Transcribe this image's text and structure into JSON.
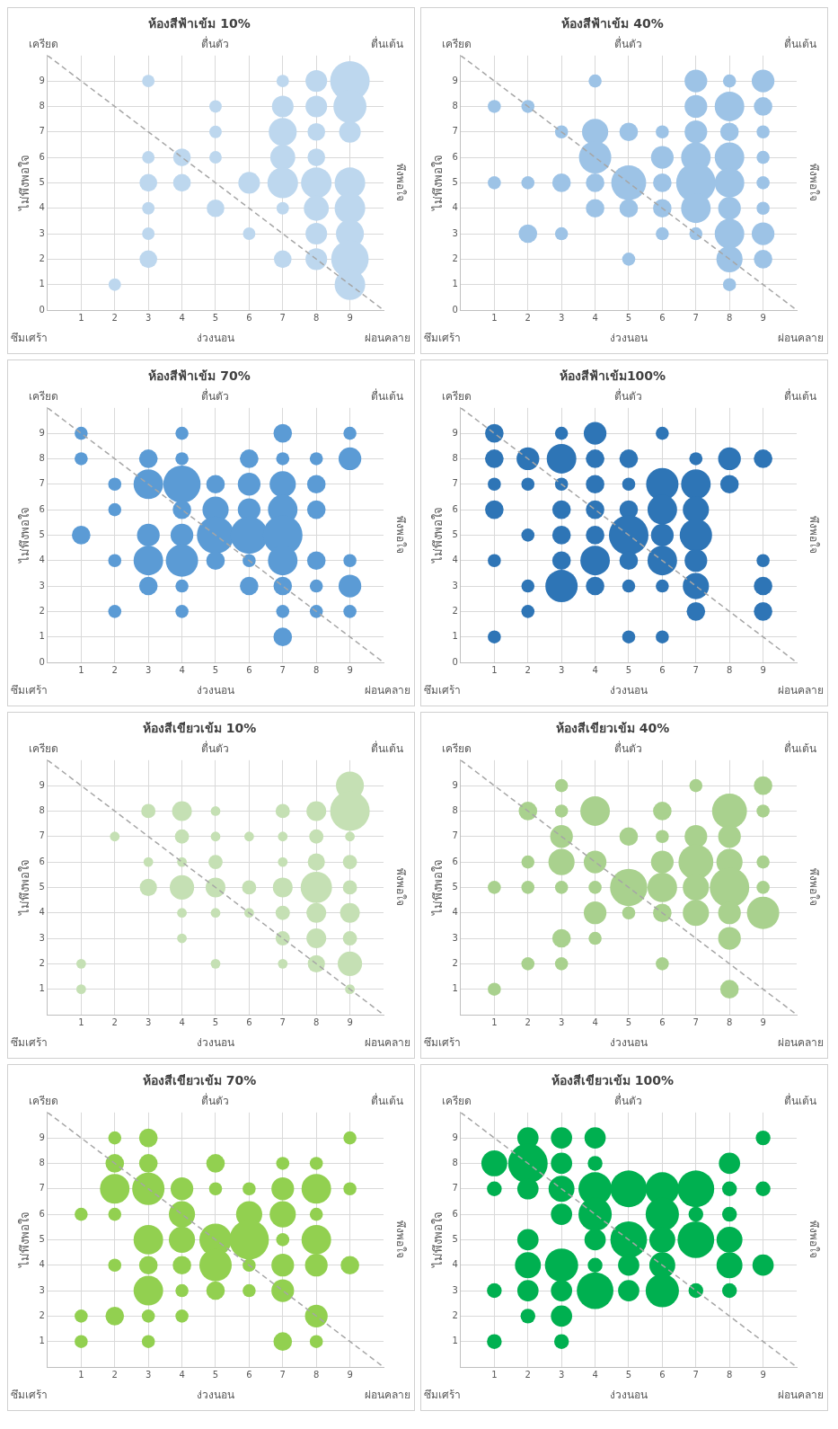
{
  "chart_data": [
    {
      "type": "bubble",
      "title": "ห้องสีฟ้าเข้ม 10%",
      "xlabel": "ง่วงนอน",
      "ylabel": "ไม่พึงพอใจ",
      "y2label": "พึงพอใจ",
      "x2label": "ตื่นตัว",
      "annotations": [
        "เครียด",
        "ตื่นเต้น",
        "ซึมเศร้า",
        "ผ่อนคลาย"
      ],
      "xlim": [
        0,
        10
      ],
      "xticks": [
        1,
        2,
        3,
        4,
        5,
        6,
        7,
        8,
        9
      ],
      "ylim": [
        0,
        10
      ],
      "yticks": [
        0,
        1,
        2,
        3,
        4,
        5,
        6,
        7,
        8,
        9
      ],
      "grid": true,
      "series": [
        {
          "color": "#bdd7ee",
          "x": [
            2,
            3,
            3,
            3,
            3,
            3,
            3,
            4,
            4,
            5,
            5,
            5,
            5,
            6,
            6,
            7,
            7,
            7,
            7,
            7,
            7,
            7,
            8,
            8,
            8,
            8,
            8,
            8,
            8,
            8,
            9,
            9,
            9,
            9,
            9,
            9,
            9,
            9
          ],
          "values": [
            1,
            9,
            6,
            5,
            4,
            3,
            2,
            6,
            5,
            8,
            7,
            6,
            4,
            5,
            3,
            9,
            8,
            7,
            6,
            5,
            4,
            2,
            9,
            8,
            7,
            6,
            5,
            4,
            3,
            2,
            9,
            8,
            7,
            5,
            4,
            3,
            2,
            1
          ],
          "sizes": [
            0.1,
            0.1,
            0.1,
            0.2,
            0.1,
            0.1,
            0.2,
            0.2,
            0.2,
            0.1,
            0.1,
            0.1,
            0.2,
            0.3,
            0.1,
            0.1,
            0.3,
            0.5,
            0.4,
            0.6,
            0.1,
            0.2,
            0.3,
            0.3,
            0.2,
            0.2,
            0.6,
            0.4,
            0.3,
            0.3,
            1,
            0.7,
            0.3,
            0.6,
            0.6,
            0.5,
            0.9,
            0.6
          ]
        },
        {
          "type": "line",
          "color": "#a6a6a6",
          "line_style": "dashed",
          "x": [
            0,
            10
          ],
          "values": [
            10,
            0
          ]
        }
      ]
    },
    {
      "type": "bubble",
      "title": "ห้องสีฟ้าเข้ม 40%",
      "xlabel": "ง่วงนอน",
      "ylabel": "ไม่พึงพอใจ",
      "y2label": "พึงพอใจ",
      "x2label": "ตื่นตัว",
      "annotations": [
        "เครียด",
        "ตื่นเต้น",
        "ซึมเศร้า",
        "ผ่อนคลาย"
      ],
      "xlim": [
        0,
        10
      ],
      "xticks": [
        1,
        2,
        3,
        4,
        5,
        6,
        7,
        8,
        9
      ],
      "ylim": [
        0,
        10
      ],
      "yticks": [
        0,
        1,
        2,
        3,
        4,
        5,
        6,
        7,
        8,
        9
      ],
      "grid": true,
      "series": [
        {
          "color": "#9dc3e6",
          "x": [
            1,
            1,
            2,
            2,
            2,
            3,
            3,
            3,
            4,
            4,
            4,
            4,
            4,
            5,
            5,
            5,
            5,
            6,
            6,
            6,
            6,
            6,
            7,
            7,
            7,
            7,
            7,
            7,
            7,
            8,
            8,
            8,
            8,
            8,
            8,
            8,
            8,
            8,
            9,
            9,
            9,
            9,
            9,
            9,
            9,
            9
          ],
          "values": [
            8,
            5,
            8,
            5,
            3,
            7,
            5,
            3,
            9,
            7,
            6,
            5,
            4,
            7,
            5,
            4,
            2,
            7,
            6,
            5,
            4,
            3,
            9,
            8,
            7,
            6,
            5,
            4,
            3,
            9,
            8,
            7,
            6,
            5,
            4,
            3,
            2,
            1,
            9,
            8,
            7,
            6,
            5,
            4,
            3,
            2
          ],
          "sizes": [
            0.11,
            0.11,
            0.11,
            0.11,
            0.22,
            0.11,
            0.22,
            0.11,
            0.11,
            0.44,
            0.67,
            0.22,
            0.22,
            0.22,
            0.78,
            0.22,
            0.11,
            0.11,
            0.33,
            0.22,
            0.22,
            0.11,
            0.33,
            0.33,
            0.33,
            0.56,
            1,
            0.56,
            0.11,
            0.11,
            0.56,
            0.22,
            0.56,
            0.56,
            0.33,
            0.56,
            0.44,
            0.11,
            0.33,
            0.22,
            0.11,
            0.11,
            0.11,
            0.11,
            0.33,
            0.22
          ]
        },
        {
          "type": "line",
          "color": "#a6a6a6",
          "line_style": "dashed",
          "x": [
            0,
            10
          ],
          "values": [
            10,
            0
          ]
        }
      ]
    },
    {
      "type": "bubble",
      "title": "ห้องสีฟ้าเข้ม 70%",
      "xlabel": "ง่วงนอน",
      "ylabel": "ไม่พึงพอใจ",
      "y2label": "พึงพอใจ",
      "x2label": "ตื่นตัว",
      "annotations": [
        "เครียด",
        "ตื่นเต้น",
        "ซึมเศร้า",
        "ผ่อนคลาย"
      ],
      "xlim": [
        0,
        10
      ],
      "xticks": [
        1,
        2,
        3,
        4,
        5,
        6,
        7,
        8,
        9
      ],
      "ylim": [
        0,
        10
      ],
      "yticks": [
        0,
        1,
        2,
        3,
        4,
        5,
        6,
        7,
        8,
        9
      ],
      "grid": true,
      "series": [
        {
          "color": "#5b9bd5",
          "x": [
            1,
            1,
            1,
            2,
            2,
            2,
            2,
            3,
            3,
            3,
            3,
            3,
            4,
            4,
            4,
            4,
            4,
            4,
            4,
            4,
            5,
            5,
            5,
            5,
            6,
            6,
            6,
            6,
            6,
            6,
            7,
            7,
            7,
            7,
            7,
            7,
            7,
            7,
            7,
            8,
            8,
            8,
            8,
            8,
            8,
            9,
            9,
            9,
            9,
            9
          ],
          "values": [
            9,
            8,
            5,
            7,
            6,
            4,
            2,
            8,
            7,
            5,
            4,
            3,
            9,
            8,
            7,
            6,
            5,
            4,
            3,
            2,
            7,
            6,
            5,
            4,
            8,
            7,
            6,
            5,
            4,
            3,
            9,
            8,
            7,
            6,
            5,
            4,
            3,
            2,
            1,
            8,
            7,
            6,
            4,
            3,
            2,
            9,
            8,
            4,
            3,
            2
          ],
          "sizes": [
            0.11,
            0.11,
            0.22,
            0.11,
            0.11,
            0.11,
            0.11,
            0.22,
            0.56,
            0.33,
            0.56,
            0.22,
            0.11,
            0.11,
            0.89,
            0.22,
            0.33,
            0.67,
            0.11,
            0.11,
            0.22,
            0.44,
            0.89,
            0.22,
            0.22,
            0.33,
            0.33,
            0.89,
            0.11,
            0.22,
            0.22,
            0.11,
            0.44,
            0.56,
            1,
            0.56,
            0.22,
            0.11,
            0.22,
            0.11,
            0.22,
            0.22,
            0.22,
            0.11,
            0.11,
            0.11,
            0.33,
            0.11,
            0.33,
            0.11
          ]
        },
        {
          "type": "line",
          "color": "#a6a6a6",
          "line_style": "dashed",
          "x": [
            0,
            10
          ],
          "values": [
            10,
            0
          ]
        }
      ]
    },
    {
      "type": "bubble",
      "title": "ห้องสีฟ้าเข้ม100%",
      "xlabel": "ง่วงนอน",
      "ylabel": "ไม่พึงพอใจ",
      "y2label": "พึงพอใจ",
      "x2label": "ตื่นตัว",
      "annotations": [
        "เครียด",
        "ตื่นเต้น",
        "ซึมเศร้า",
        "ผ่อนคลาย"
      ],
      "xlim": [
        0,
        10
      ],
      "xticks": [
        1,
        2,
        3,
        4,
        5,
        6,
        7,
        8,
        9
      ],
      "ylim": [
        0,
        10
      ],
      "yticks": [
        0,
        1,
        2,
        3,
        4,
        5,
        6,
        7,
        8,
        9
      ],
      "grid": true,
      "series": [
        {
          "color": "#2e75b6",
          "x": [
            1,
            1,
            1,
            1,
            1,
            1,
            2,
            2,
            2,
            2,
            2,
            3,
            3,
            3,
            3,
            3,
            3,
            3,
            4,
            4,
            4,
            4,
            4,
            4,
            4,
            5,
            5,
            5,
            5,
            5,
            5,
            5,
            6,
            6,
            6,
            6,
            6,
            6,
            6,
            7,
            7,
            7,
            7,
            7,
            7,
            7,
            8,
            8,
            9,
            9,
            9,
            9
          ],
          "values": [
            9,
            8,
            7,
            6,
            4,
            1,
            8,
            7,
            5,
            3,
            2,
            9,
            8,
            7,
            6,
            5,
            4,
            3,
            9,
            8,
            7,
            6,
            5,
            4,
            3,
            8,
            7,
            6,
            5,
            4,
            3,
            1,
            9,
            7,
            6,
            5,
            4,
            3,
            1,
            8,
            7,
            6,
            5,
            4,
            3,
            2,
            8,
            7,
            8,
            4,
            3,
            2
          ],
          "sizes": [
            0.22,
            0.22,
            0.11,
            0.22,
            0.11,
            0.11,
            0.33,
            0.11,
            0.11,
            0.11,
            0.11,
            0.11,
            0.56,
            0.11,
            0.22,
            0.22,
            0.22,
            0.67,
            0.33,
            0.22,
            0.22,
            0.22,
            0.22,
            0.56,
            0.22,
            0.22,
            0.11,
            0.22,
            1,
            0.22,
            0.11,
            0.11,
            0.11,
            0.67,
            0.56,
            0.33,
            0.56,
            0.11,
            0.11,
            0.11,
            0.56,
            0.44,
            0.67,
            0.33,
            0.44,
            0.22,
            0.33,
            0.22,
            0.22,
            0.11,
            0.22,
            0.22
          ]
        },
        {
          "type": "line",
          "color": "#a6a6a6",
          "line_style": "dashed",
          "x": [
            0,
            10
          ],
          "values": [
            10,
            0
          ]
        }
      ]
    },
    {
      "type": "bubble",
      "title": "ห้องสีเขียวเข้ม 10%",
      "xlabel": "ง่วงนอน",
      "ylabel": "ไม่พึงพอใจ",
      "y2label": "พึงพอใจ",
      "x2label": "ตื่นตัว",
      "annotations": [
        "เครียด",
        "ตื่นเต้น",
        "ซึมเศร้า",
        "ผ่อนคลาย"
      ],
      "xlim": [
        0,
        10
      ],
      "xticks": [
        1,
        2,
        3,
        4,
        5,
        6,
        7,
        8,
        9
      ],
      "ylim": [
        0,
        10
      ],
      "yticks": [
        1,
        2,
        3,
        4,
        5,
        6,
        7,
        8,
        9
      ],
      "grid": true,
      "series": [
        {
          "color": "#c5e0b4",
          "x": [
            1,
            1,
            2,
            3,
            3,
            3,
            4,
            4,
            4,
            4,
            4,
            4,
            5,
            5,
            5,
            5,
            5,
            5,
            6,
            6,
            6,
            7,
            7,
            7,
            7,
            7,
            7,
            7,
            8,
            8,
            8,
            8,
            8,
            8,
            8,
            9,
            9,
            9,
            9,
            9,
            9,
            9,
            9,
            9
          ],
          "values": [
            2,
            1,
            7,
            8,
            6,
            5,
            8,
            7,
            6,
            5,
            4,
            3,
            8,
            7,
            6,
            5,
            4,
            2,
            7,
            5,
            4,
            8,
            7,
            6,
            5,
            4,
            3,
            2,
            8,
            7,
            6,
            5,
            4,
            3,
            2,
            9,
            8,
            7,
            6,
            5,
            4,
            3,
            2,
            1
          ],
          "sizes": [
            0.06,
            0.06,
            0.06,
            0.13,
            0.06,
            0.19,
            0.25,
            0.13,
            0.06,
            0.38,
            0.06,
            0.06,
            0.06,
            0.06,
            0.13,
            0.25,
            0.06,
            0.06,
            0.06,
            0.13,
            0.06,
            0.13,
            0.06,
            0.06,
            0.25,
            0.13,
            0.13,
            0.06,
            0.25,
            0.13,
            0.19,
            0.63,
            0.25,
            0.25,
            0.19,
            0.5,
            1,
            0.06,
            0.13,
            0.13,
            0.25,
            0.13,
            0.38,
            0.06
          ]
        },
        {
          "type": "line",
          "color": "#a6a6a6",
          "line_style": "dashed",
          "x": [
            0,
            10
          ],
          "values": [
            10,
            0
          ]
        }
      ]
    },
    {
      "type": "bubble",
      "title": "ห้องสีเขียวเข้ม 40%",
      "xlabel": "ง่วงนอน",
      "ylabel": "ไม่พึงพอใจ",
      "y2label": "พึงพอใจ",
      "x2label": "ตื่นตัว",
      "annotations": [
        "เครียด",
        "ตื่นเต้น",
        "ซึมเศร้า",
        "ผ่อนคลาย"
      ],
      "xlim": [
        0,
        10
      ],
      "xticks": [
        1,
        2,
        3,
        4,
        5,
        6,
        7,
        8,
        9
      ],
      "ylim": [
        0,
        10
      ],
      "yticks": [
        1,
        2,
        3,
        4,
        5,
        6,
        7,
        8,
        9
      ],
      "grid": true,
      "series": [
        {
          "color": "#a9d18e",
          "x": [
            1,
            1,
            2,
            2,
            2,
            2,
            3,
            3,
            3,
            3,
            3,
            3,
            3,
            4,
            4,
            4,
            4,
            4,
            5,
            5,
            5,
            6,
            6,
            6,
            6,
            6,
            6,
            7,
            7,
            7,
            7,
            7,
            8,
            8,
            8,
            8,
            8,
            8,
            8,
            9,
            9,
            9,
            9,
            9
          ],
          "values": [
            5,
            1,
            8,
            6,
            5,
            2,
            9,
            8,
            7,
            6,
            5,
            3,
            2,
            8,
            6,
            5,
            4,
            3,
            7,
            5,
            4,
            8,
            7,
            6,
            5,
            4,
            2,
            9,
            7,
            6,
            5,
            4,
            8,
            7,
            6,
            5,
            4,
            3,
            1,
            9,
            8,
            6,
            5,
            4
          ],
          "sizes": [
            0.11,
            0.11,
            0.22,
            0.11,
            0.11,
            0.11,
            0.11,
            0.11,
            0.33,
            0.44,
            0.11,
            0.22,
            0.11,
            0.56,
            0.33,
            0.11,
            0.33,
            0.11,
            0.22,
            0.89,
            0.11,
            0.22,
            0.11,
            0.33,
            0.56,
            0.22,
            0.11,
            0.11,
            0.33,
            0.78,
            0.44,
            0.44,
            0.78,
            0.33,
            0.44,
            1,
            0.33,
            0.33,
            0.22,
            0.22,
            0.11,
            0.11,
            0.11,
            0.67
          ]
        },
        {
          "type": "line",
          "color": "#a6a6a6",
          "line_style": "dashed",
          "x": [
            0,
            10
          ],
          "values": [
            10,
            0
          ]
        }
      ]
    },
    {
      "type": "bubble",
      "title": "ห้องสีเขียวเข้ม 70%",
      "xlabel": "ง่วงนอน",
      "ylabel": "ไม่พึงพอใจ",
      "y2label": "พึงพอใจ",
      "x2label": "ตื่นตัว",
      "annotations": [
        "เครียด",
        "ตื่นเต้น",
        "ซึมเศร้า",
        "ผ่อนคลาย"
      ],
      "xlim": [
        0,
        10
      ],
      "xticks": [
        1,
        2,
        3,
        4,
        5,
        6,
        7,
        8,
        9
      ],
      "ylim": [
        0,
        10
      ],
      "yticks": [
        1,
        2,
        3,
        4,
        5,
        6,
        7,
        8,
        9
      ],
      "grid": true,
      "series": [
        {
          "color": "#92d050",
          "x": [
            1,
            1,
            1,
            2,
            2,
            2,
            2,
            2,
            2,
            3,
            3,
            3,
            3,
            3,
            3,
            3,
            3,
            4,
            4,
            4,
            4,
            4,
            4,
            5,
            5,
            5,
            5,
            5,
            6,
            6,
            6,
            6,
            6,
            7,
            7,
            7,
            7,
            7,
            7,
            7,
            8,
            8,
            8,
            8,
            8,
            8,
            8,
            9,
            9,
            9
          ],
          "values": [
            6,
            2,
            1,
            9,
            8,
            7,
            6,
            4,
            2,
            9,
            8,
            7,
            5,
            4,
            3,
            2,
            1,
            7,
            6,
            5,
            4,
            3,
            2,
            8,
            7,
            5,
            4,
            3,
            7,
            6,
            5,
            4,
            3,
            8,
            7,
            6,
            5,
            4,
            3,
            1,
            8,
            7,
            6,
            5,
            4,
            2,
            1,
            9,
            7,
            4
          ],
          "sizes": [
            0.11,
            0.11,
            0.11,
            0.11,
            0.22,
            0.56,
            0.11,
            0.11,
            0.22,
            0.22,
            0.22,
            0.67,
            0.56,
            0.22,
            0.56,
            0.11,
            0.11,
            0.33,
            0.44,
            0.44,
            0.22,
            0.11,
            0.11,
            0.22,
            0.11,
            0.67,
            0.67,
            0.22,
            0.11,
            0.44,
            1,
            0.11,
            0.11,
            0.11,
            0.33,
            0.44,
            0.11,
            0.33,
            0.33,
            0.22,
            0.11,
            0.56,
            0.11,
            0.56,
            0.33,
            0.33,
            0.11,
            0.11,
            0.11,
            0.22
          ]
        },
        {
          "type": "line",
          "color": "#a6a6a6",
          "line_style": "dashed",
          "x": [
            0,
            10
          ],
          "values": [
            10,
            0
          ]
        }
      ]
    },
    {
      "type": "bubble",
      "title": "ห้องสีเขียวเข้ม 100%",
      "xlabel": "ง่วงนอน",
      "ylabel": "ไม่พึงพอใจ",
      "y2label": "พึงพอใจ",
      "x2label": "ตื่นตัว",
      "annotations": [
        "เครียด",
        "ตื่นเต้น",
        "ซึมเศร้า",
        "ผ่อนคลาย"
      ],
      "xlim": [
        0,
        10
      ],
      "xticks": [
        1,
        2,
        3,
        4,
        5,
        6,
        7,
        8,
        9
      ],
      "ylim": [
        0,
        10
      ],
      "yticks": [
        1,
        2,
        3,
        4,
        5,
        6,
        7,
        8,
        9
      ],
      "grid": true,
      "series": [
        {
          "color": "#00b050",
          "x": [
            1,
            1,
            1,
            1,
            2,
            2,
            2,
            2,
            2,
            2,
            2,
            3,
            3,
            3,
            3,
            3,
            3,
            3,
            3,
            4,
            4,
            4,
            4,
            4,
            4,
            4,
            5,
            5,
            5,
            5,
            6,
            6,
            6,
            6,
            6,
            7,
            7,
            7,
            7,
            8,
            8,
            8,
            8,
            8,
            8,
            9,
            9,
            9
          ],
          "values": [
            8,
            7,
            3,
            1,
            9,
            8,
            7,
            5,
            4,
            3,
            2,
            9,
            8,
            7,
            6,
            4,
            3,
            2,
            1,
            9,
            8,
            7,
            6,
            5,
            4,
            3,
            7,
            5,
            4,
            3,
            7,
            6,
            5,
            4,
            3,
            7,
            6,
            5,
            3,
            8,
            7,
            6,
            5,
            4,
            3,
            9,
            7,
            4
          ],
          "sizes": [
            0.43,
            0.14,
            0.14,
            0.14,
            0.29,
            1,
            0.29,
            0.29,
            0.43,
            0.29,
            0.14,
            0.29,
            0.29,
            0.43,
            0.29,
            0.71,
            0.29,
            0.29,
            0.14,
            0.29,
            0.14,
            0.71,
            0.71,
            0.29,
            0.14,
            0.86,
            0.86,
            0.86,
            0.29,
            0.29,
            0.71,
            0.71,
            0.43,
            0.43,
            0.71,
            0.86,
            0.14,
            0.86,
            0.14,
            0.29,
            0.14,
            0.14,
            0.43,
            0.43,
            0.14,
            0.14,
            0.14,
            0.29
          ]
        },
        {
          "type": "line",
          "color": "#a6a6a6",
          "line_style": "dashed",
          "x": [
            0,
            10
          ],
          "values": [
            10,
            0
          ]
        }
      ]
    }
  ]
}
